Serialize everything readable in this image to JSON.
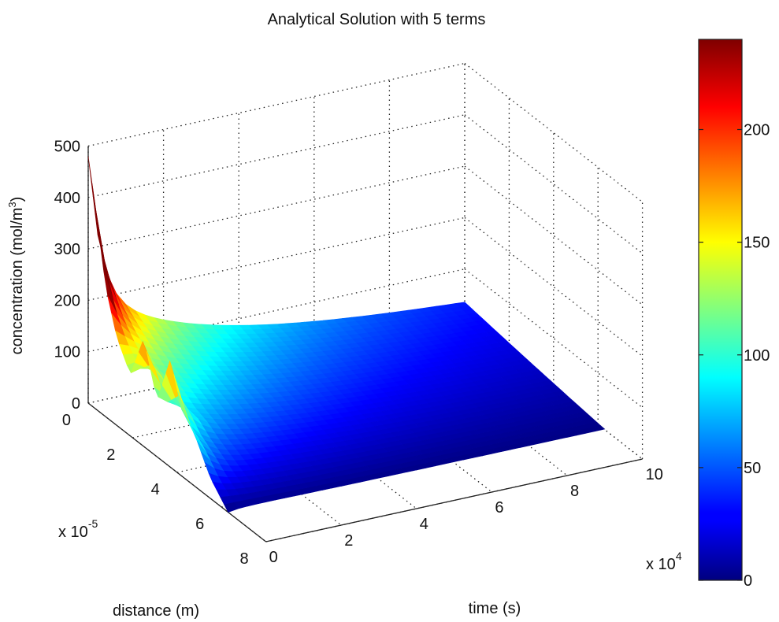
{
  "chart_data": {
    "type": "surface",
    "title": "Analytical Solution with 5 terms",
    "zlabel": "concentration (mol/m³)",
    "zlabel_parts": {
      "main": "concentration (mol/m",
      "sup": "3",
      "end": ")"
    },
    "xlabel": "distance (m)",
    "ylabel": "time (s)",
    "distance_axis": {
      "ticks": [
        0,
        2,
        4,
        6,
        8
      ],
      "tick_labels": [
        "0",
        "2",
        "4",
        "6",
        "8"
      ],
      "multiplier": {
        "base": "x 10",
        "exp": "-5"
      },
      "range": [
        0,
        8
      ]
    },
    "time_axis": {
      "ticks": [
        0,
        2,
        4,
        6,
        8,
        10
      ],
      "tick_labels": [
        "0",
        "2",
        "4",
        "6",
        "8",
        "10"
      ],
      "multiplier": {
        "base": "x 10",
        "exp": "4"
      },
      "range": [
        0,
        10
      ]
    },
    "z_axis": {
      "ticks": [
        0,
        100,
        200,
        300,
        400,
        500
      ],
      "tick_labels": [
        "0",
        "100",
        "200",
        "300",
        "400",
        "500"
      ],
      "range": [
        0,
        500
      ]
    },
    "colorbar": {
      "colormap": "jet",
      "range": [
        0,
        240
      ],
      "ticks": [
        0,
        50,
        100,
        150,
        200
      ],
      "tick_labels": [
        "0",
        "50",
        "100",
        "150",
        "200"
      ]
    },
    "surface_extent": {
      "distance_max": 6.3,
      "time_max": 10
    },
    "profile_at_t0": {
      "x": [
        0,
        0.3,
        0.8,
        1.3,
        1.9,
        2.5,
        3.1,
        3.7,
        4.2,
        4.8,
        5.5,
        6.3
      ],
      "z": [
        480,
        400,
        250,
        170,
        120,
        210,
        110,
        210,
        130,
        100,
        40,
        0
      ]
    },
    "grid": true
  }
}
